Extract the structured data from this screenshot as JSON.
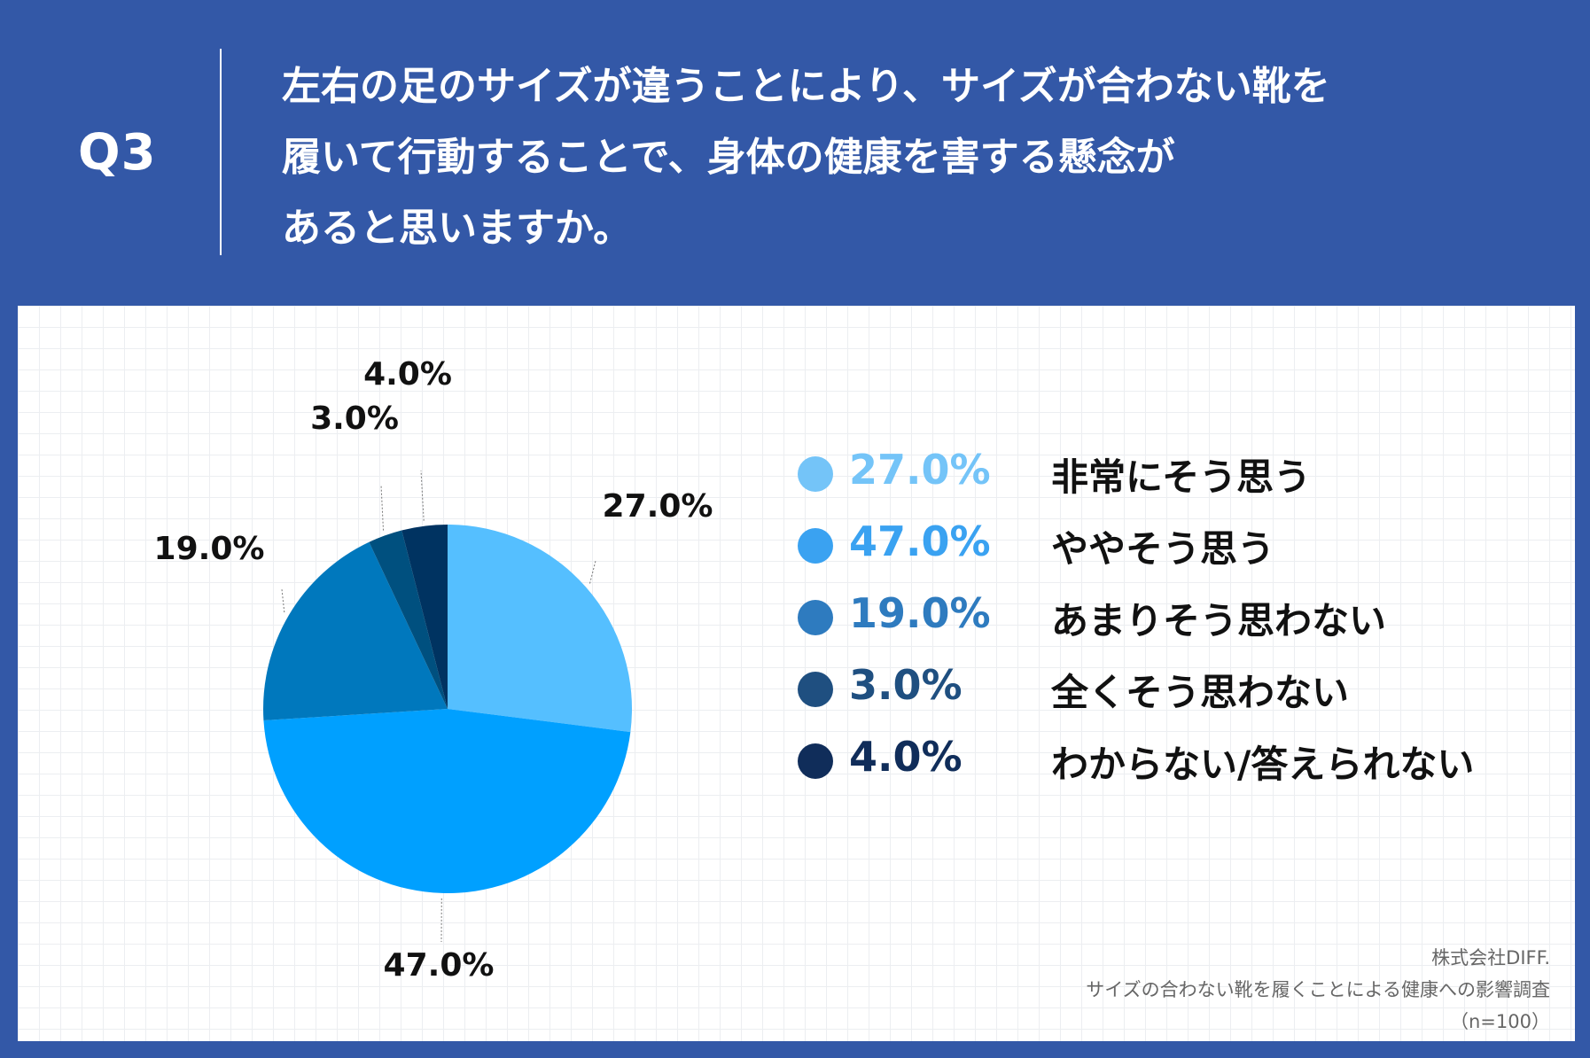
{
  "header": {
    "q_label": "Q3",
    "question_lines": [
      "左右の足のサイズが違うことにより、サイズが合わない靴を",
      "履いて行動することで、身体の健康を害する懸念が",
      "あると思いますか。"
    ]
  },
  "chart_data": {
    "type": "pie",
    "start_angle_deg": 0,
    "direction": "clockwise",
    "categories": [
      "非常にそう思う",
      "ややそう思う",
      "あまりそう思わない",
      "全くそう思わない",
      "わからない/答えられない"
    ],
    "values": [
      27.0,
      47.0,
      19.0,
      3.0,
      4.0
    ],
    "value_labels": [
      "27.0%",
      "47.0%",
      "19.0%",
      "3.0%",
      "4.0%"
    ],
    "slice_colors": [
      "#55bfff",
      "#00a0ff",
      "#0078bd",
      "#00507f",
      "#003361"
    ],
    "legend_colors": [
      "#74c4f8",
      "#3aa2f1",
      "#2e7bbf",
      "#1f4f80",
      "#102d5a"
    ],
    "legend_placement": "right"
  },
  "credit": {
    "company": "株式会社DIFF.",
    "survey": "サイズの合わない靴を履くことによる健康への影響調査",
    "sample": "（n=100）"
  }
}
